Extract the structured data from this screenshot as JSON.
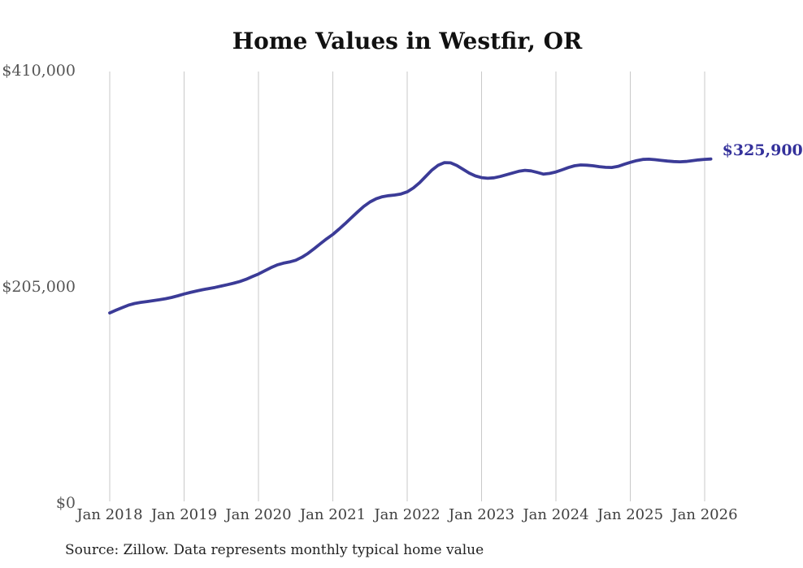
{
  "title": "Home Values in Westfir, OR",
  "source_note": "Source: Zillow. Data represents monthly typical home value",
  "chart_data": {
    "type": "line",
    "title": "Home Values in Westfir, OR",
    "xlabel": "",
    "ylabel": "",
    "frequency": "monthly",
    "x_start": "Jan 2018",
    "x_end": "Feb 2026",
    "x_tick_labels": [
      "Jan 2018",
      "Jan 2019",
      "Jan 2020",
      "Jan 2021",
      "Jan 2022",
      "Jan 2023",
      "Jan 2024",
      "Jan 2025",
      "Jan 2026"
    ],
    "x_tick_month_indices": [
      0,
      12,
      24,
      36,
      48,
      60,
      72,
      84,
      96
    ],
    "y_ticks": [
      {
        "value": 0,
        "label": "$0"
      },
      {
        "value": 205000,
        "label": "$205,000"
      },
      {
        "value": 410000,
        "label": "$410,000"
      }
    ],
    "ylim": [
      0,
      410000
    ],
    "grid": "vertical-only",
    "legend_position": "none",
    "end_label": "$325,900",
    "final_value": 325900,
    "line_color": "#3b3b97",
    "end_label_color": "#34319b",
    "grid_color": "#c9c9c9",
    "values": [
      180100,
      182600,
      185100,
      187400,
      189000,
      190100,
      190900,
      191700,
      192600,
      193600,
      194800,
      196300,
      198000,
      199500,
      200900,
      202100,
      203200,
      204300,
      205600,
      206900,
      208300,
      209900,
      212000,
      214500,
      217000,
      220000,
      223000,
      225500,
      227200,
      228400,
      230000,
      232800,
      236500,
      241000,
      245800,
      250300,
      254500,
      259500,
      264800,
      270300,
      275800,
      281000,
      285300,
      288300,
      290200,
      291200,
      291800,
      292800,
      294800,
      298500,
      303500,
      309500,
      315500,
      320000,
      322500,
      322300,
      319800,
      316200,
      312600,
      309900,
      308300,
      307700,
      308100,
      309400,
      311000,
      312700,
      314300,
      315200,
      314700,
      313200,
      311600,
      312300,
      313700,
      315700,
      317800,
      319500,
      320300,
      320100,
      319500,
      318700,
      318100,
      317900,
      318900,
      320900,
      322800,
      324400,
      325500,
      325800,
      325300,
      324600,
      324000,
      323500,
      323300,
      323600,
      324300,
      325100,
      325600,
      325900
    ]
  }
}
